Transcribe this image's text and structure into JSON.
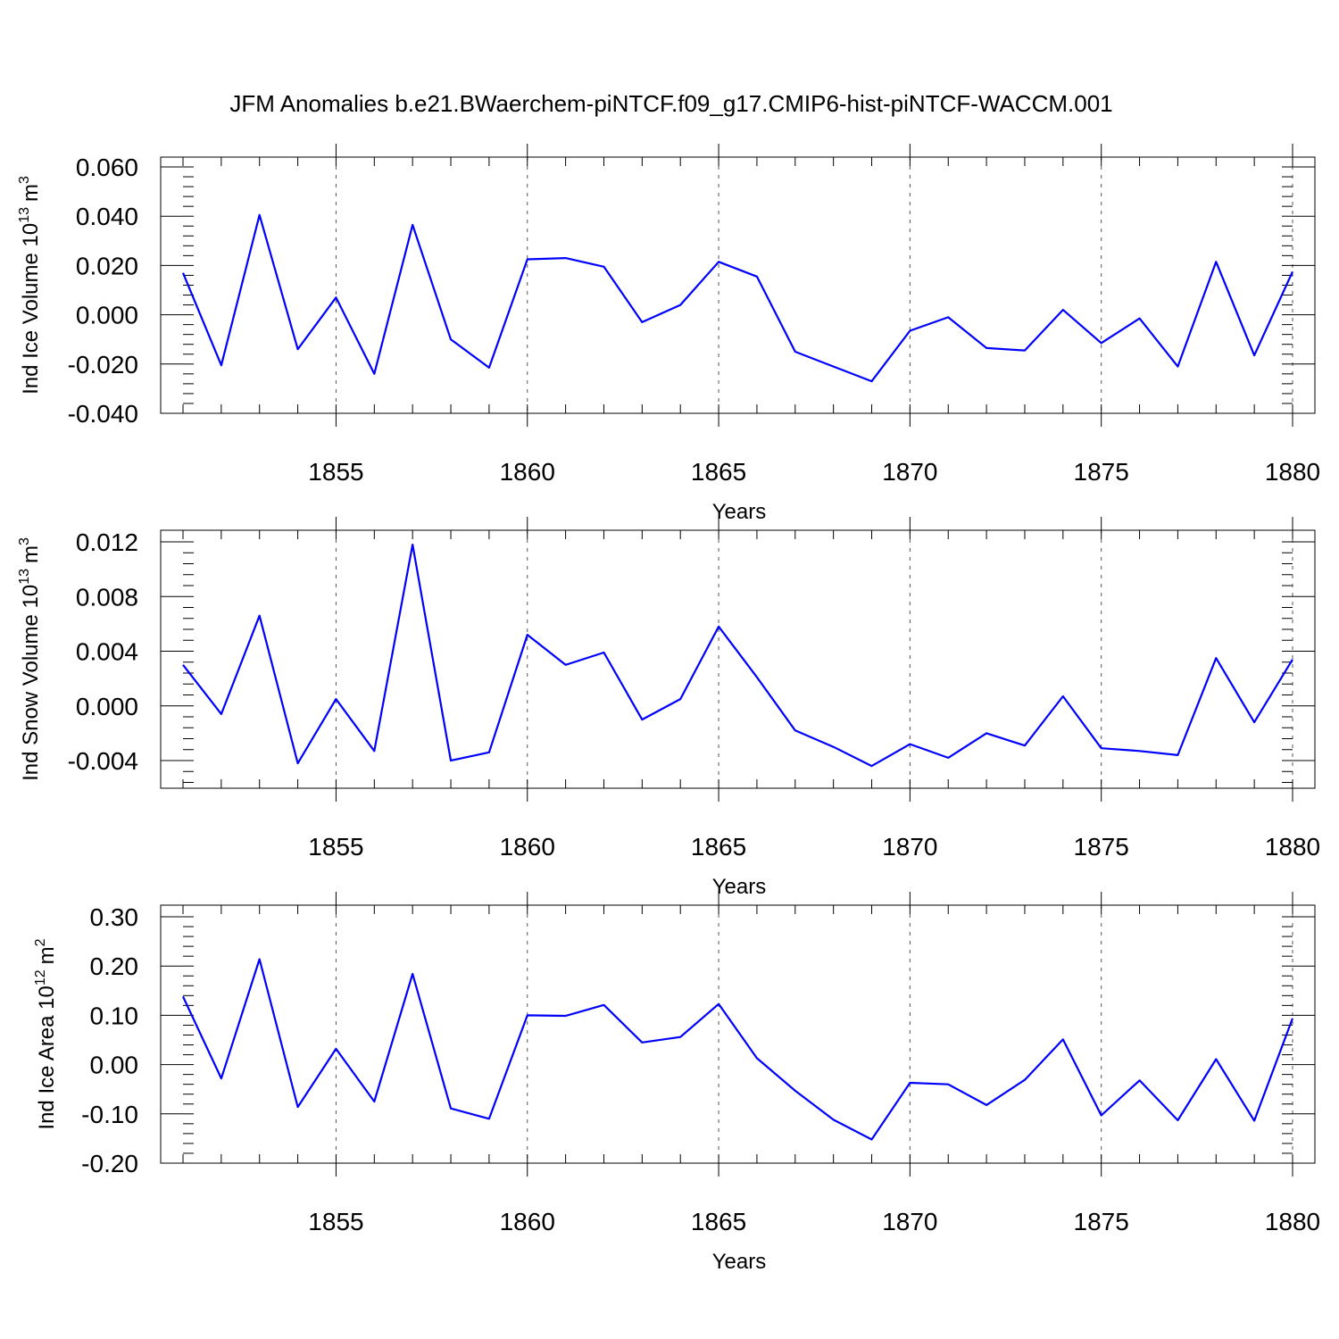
{
  "figure_title": "JFM Anomalies b.e21.BWaerchem-piNTCF.f09_g17.CMIP6-hist-piNTCF-WACCM.001",
  "series_color": "#0000ff",
  "chart_data": [
    {
      "type": "line",
      "title": "JFM Anomalies b.e21.BWaerchem-piNTCF.f09_g17.CMIP6-hist-piNTCF-WACCM.001",
      "xlabel": "Years",
      "ylabel_main": "Ind Ice Volume 10",
      "ylabel_exp": "13",
      "ylabel_unit": "m",
      "ylabel_unit_exp": "3",
      "xlim": [
        1851,
        1880
      ],
      "ylim": [
        -0.04,
        0.06
      ],
      "xticks": [
        "1855",
        "1860",
        "1865",
        "1870",
        "1875",
        "1880"
      ],
      "yticks": [
        "0.060",
        "0.040",
        "0.020",
        "0.000",
        "-0.020",
        "-0.040"
      ],
      "x": [
        1851,
        1852,
        1853,
        1854,
        1855,
        1856,
        1857,
        1858,
        1859,
        1860,
        1861,
        1862,
        1863,
        1864,
        1865,
        1866,
        1867,
        1868,
        1869,
        1870,
        1871,
        1872,
        1873,
        1874,
        1875,
        1876,
        1877,
        1878,
        1879,
        1880
      ],
      "values": [
        0.017,
        -0.0205,
        0.0405,
        -0.014,
        0.007,
        -0.024,
        0.0365,
        -0.01,
        -0.0215,
        0.0225,
        0.023,
        0.0195,
        -0.003,
        0.004,
        0.0215,
        0.0155,
        -0.015,
        -0.021,
        -0.027,
        -0.0065,
        -0.001,
        -0.0135,
        -0.0145,
        0.002,
        -0.0115,
        -0.0015,
        -0.021,
        0.0215,
        -0.0165,
        0.0175
      ]
    },
    {
      "type": "line",
      "xlabel": "Years",
      "ylabel_main": "Ind Snow Volume 10",
      "ylabel_exp": "13",
      "ylabel_unit": "m",
      "ylabel_unit_exp": "3",
      "xlim": [
        1851,
        1880
      ],
      "ylim": [
        -0.006,
        0.0122
      ],
      "xticks": [
        "1855",
        "1860",
        "1865",
        "1870",
        "1875",
        "1880"
      ],
      "yticks": [
        "0.012",
        "0.008",
        "0.004",
        "0.000",
        "-0.004"
      ],
      "x": [
        1851,
        1852,
        1853,
        1854,
        1855,
        1856,
        1857,
        1858,
        1859,
        1860,
        1861,
        1862,
        1863,
        1864,
        1865,
        1866,
        1867,
        1868,
        1869,
        1870,
        1871,
        1872,
        1873,
        1874,
        1875,
        1876,
        1877,
        1878,
        1879,
        1880
      ],
      "values": [
        0.003,
        -0.0006,
        0.0066,
        -0.0042,
        0.0005,
        -0.0033,
        0.0118,
        -0.004,
        -0.0034,
        0.0052,
        0.003,
        0.0039,
        -0.001,
        0.0005,
        0.0058,
        0.0021,
        -0.0018,
        -0.003,
        -0.0044,
        -0.0028,
        -0.0038,
        -0.002,
        -0.0029,
        0.0007,
        -0.0031,
        -0.0033,
        -0.0036,
        0.0035,
        -0.0012,
        0.0034
      ]
    },
    {
      "type": "line",
      "xlabel": "Years",
      "ylabel_main": "Ind Ice Area 10",
      "ylabel_exp": "12",
      "ylabel_unit": "m",
      "ylabel_unit_exp": "2",
      "xlim": [
        1851,
        1880
      ],
      "ylim": [
        -0.2,
        0.3
      ],
      "xticks": [
        "1855",
        "1860",
        "1865",
        "1870",
        "1875",
        "1880"
      ],
      "yticks": [
        "0.30",
        "0.20",
        "0.10",
        "0.00",
        "-0.10",
        "-0.20"
      ],
      "x": [
        1851,
        1852,
        1853,
        1854,
        1855,
        1856,
        1857,
        1858,
        1859,
        1860,
        1861,
        1862,
        1863,
        1864,
        1865,
        1866,
        1867,
        1868,
        1869,
        1870,
        1871,
        1872,
        1873,
        1874,
        1875,
        1876,
        1877,
        1878,
        1879,
        1880
      ],
      "values": [
        0.138,
        -0.028,
        0.214,
        -0.086,
        0.032,
        -0.075,
        0.184,
        -0.089,
        -0.11,
        0.1,
        0.099,
        0.121,
        0.045,
        0.056,
        0.123,
        0.013,
        -0.053,
        -0.112,
        -0.152,
        -0.037,
        -0.04,
        -0.082,
        -0.031,
        0.051,
        -0.103,
        -0.032,
        -0.113,
        0.011,
        -0.114,
        0.094
      ]
    }
  ]
}
